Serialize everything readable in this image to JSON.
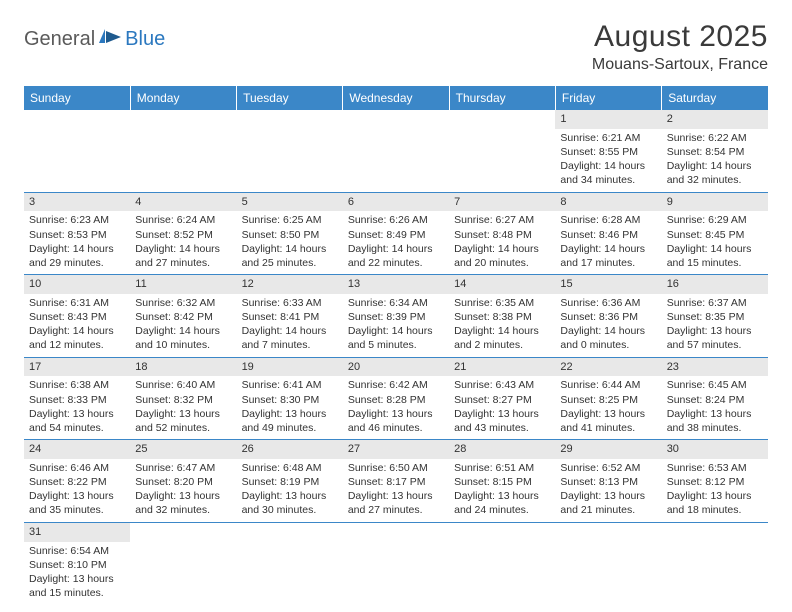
{
  "logo": {
    "general": "General",
    "blue": "Blue"
  },
  "title": "August 2025",
  "location": "Mouans-Sartoux, France",
  "colors": {
    "header_bg": "#3b87c8",
    "header_text": "#ffffff",
    "daynum_bg": "#e8e8e8",
    "border": "#3b87c8",
    "logo_blue": "#2b78bf",
    "text": "#333333",
    "background": "#ffffff"
  },
  "weekdays": [
    "Sunday",
    "Monday",
    "Tuesday",
    "Wednesday",
    "Thursday",
    "Friday",
    "Saturday"
  ],
  "weeks": [
    [
      null,
      null,
      null,
      null,
      null,
      {
        "n": "1",
        "sunrise": "Sunrise: 6:21 AM",
        "sunset": "Sunset: 8:55 PM",
        "daylight": "Daylight: 14 hours and 34 minutes."
      },
      {
        "n": "2",
        "sunrise": "Sunrise: 6:22 AM",
        "sunset": "Sunset: 8:54 PM",
        "daylight": "Daylight: 14 hours and 32 minutes."
      }
    ],
    [
      {
        "n": "3",
        "sunrise": "Sunrise: 6:23 AM",
        "sunset": "Sunset: 8:53 PM",
        "daylight": "Daylight: 14 hours and 29 minutes."
      },
      {
        "n": "4",
        "sunrise": "Sunrise: 6:24 AM",
        "sunset": "Sunset: 8:52 PM",
        "daylight": "Daylight: 14 hours and 27 minutes."
      },
      {
        "n": "5",
        "sunrise": "Sunrise: 6:25 AM",
        "sunset": "Sunset: 8:50 PM",
        "daylight": "Daylight: 14 hours and 25 minutes."
      },
      {
        "n": "6",
        "sunrise": "Sunrise: 6:26 AM",
        "sunset": "Sunset: 8:49 PM",
        "daylight": "Daylight: 14 hours and 22 minutes."
      },
      {
        "n": "7",
        "sunrise": "Sunrise: 6:27 AM",
        "sunset": "Sunset: 8:48 PM",
        "daylight": "Daylight: 14 hours and 20 minutes."
      },
      {
        "n": "8",
        "sunrise": "Sunrise: 6:28 AM",
        "sunset": "Sunset: 8:46 PM",
        "daylight": "Daylight: 14 hours and 17 minutes."
      },
      {
        "n": "9",
        "sunrise": "Sunrise: 6:29 AM",
        "sunset": "Sunset: 8:45 PM",
        "daylight": "Daylight: 14 hours and 15 minutes."
      }
    ],
    [
      {
        "n": "10",
        "sunrise": "Sunrise: 6:31 AM",
        "sunset": "Sunset: 8:43 PM",
        "daylight": "Daylight: 14 hours and 12 minutes."
      },
      {
        "n": "11",
        "sunrise": "Sunrise: 6:32 AM",
        "sunset": "Sunset: 8:42 PM",
        "daylight": "Daylight: 14 hours and 10 minutes."
      },
      {
        "n": "12",
        "sunrise": "Sunrise: 6:33 AM",
        "sunset": "Sunset: 8:41 PM",
        "daylight": "Daylight: 14 hours and 7 minutes."
      },
      {
        "n": "13",
        "sunrise": "Sunrise: 6:34 AM",
        "sunset": "Sunset: 8:39 PM",
        "daylight": "Daylight: 14 hours and 5 minutes."
      },
      {
        "n": "14",
        "sunrise": "Sunrise: 6:35 AM",
        "sunset": "Sunset: 8:38 PM",
        "daylight": "Daylight: 14 hours and 2 minutes."
      },
      {
        "n": "15",
        "sunrise": "Sunrise: 6:36 AM",
        "sunset": "Sunset: 8:36 PM",
        "daylight": "Daylight: 14 hours and 0 minutes."
      },
      {
        "n": "16",
        "sunrise": "Sunrise: 6:37 AM",
        "sunset": "Sunset: 8:35 PM",
        "daylight": "Daylight: 13 hours and 57 minutes."
      }
    ],
    [
      {
        "n": "17",
        "sunrise": "Sunrise: 6:38 AM",
        "sunset": "Sunset: 8:33 PM",
        "daylight": "Daylight: 13 hours and 54 minutes."
      },
      {
        "n": "18",
        "sunrise": "Sunrise: 6:40 AM",
        "sunset": "Sunset: 8:32 PM",
        "daylight": "Daylight: 13 hours and 52 minutes."
      },
      {
        "n": "19",
        "sunrise": "Sunrise: 6:41 AM",
        "sunset": "Sunset: 8:30 PM",
        "daylight": "Daylight: 13 hours and 49 minutes."
      },
      {
        "n": "20",
        "sunrise": "Sunrise: 6:42 AM",
        "sunset": "Sunset: 8:28 PM",
        "daylight": "Daylight: 13 hours and 46 minutes."
      },
      {
        "n": "21",
        "sunrise": "Sunrise: 6:43 AM",
        "sunset": "Sunset: 8:27 PM",
        "daylight": "Daylight: 13 hours and 43 minutes."
      },
      {
        "n": "22",
        "sunrise": "Sunrise: 6:44 AM",
        "sunset": "Sunset: 8:25 PM",
        "daylight": "Daylight: 13 hours and 41 minutes."
      },
      {
        "n": "23",
        "sunrise": "Sunrise: 6:45 AM",
        "sunset": "Sunset: 8:24 PM",
        "daylight": "Daylight: 13 hours and 38 minutes."
      }
    ],
    [
      {
        "n": "24",
        "sunrise": "Sunrise: 6:46 AM",
        "sunset": "Sunset: 8:22 PM",
        "daylight": "Daylight: 13 hours and 35 minutes."
      },
      {
        "n": "25",
        "sunrise": "Sunrise: 6:47 AM",
        "sunset": "Sunset: 8:20 PM",
        "daylight": "Daylight: 13 hours and 32 minutes."
      },
      {
        "n": "26",
        "sunrise": "Sunrise: 6:48 AM",
        "sunset": "Sunset: 8:19 PM",
        "daylight": "Daylight: 13 hours and 30 minutes."
      },
      {
        "n": "27",
        "sunrise": "Sunrise: 6:50 AM",
        "sunset": "Sunset: 8:17 PM",
        "daylight": "Daylight: 13 hours and 27 minutes."
      },
      {
        "n": "28",
        "sunrise": "Sunrise: 6:51 AM",
        "sunset": "Sunset: 8:15 PM",
        "daylight": "Daylight: 13 hours and 24 minutes."
      },
      {
        "n": "29",
        "sunrise": "Sunrise: 6:52 AM",
        "sunset": "Sunset: 8:13 PM",
        "daylight": "Daylight: 13 hours and 21 minutes."
      },
      {
        "n": "30",
        "sunrise": "Sunrise: 6:53 AM",
        "sunset": "Sunset: 8:12 PM",
        "daylight": "Daylight: 13 hours and 18 minutes."
      }
    ],
    [
      {
        "n": "31",
        "sunrise": "Sunrise: 6:54 AM",
        "sunset": "Sunset: 8:10 PM",
        "daylight": "Daylight: 13 hours and 15 minutes."
      },
      null,
      null,
      null,
      null,
      null,
      null
    ]
  ]
}
